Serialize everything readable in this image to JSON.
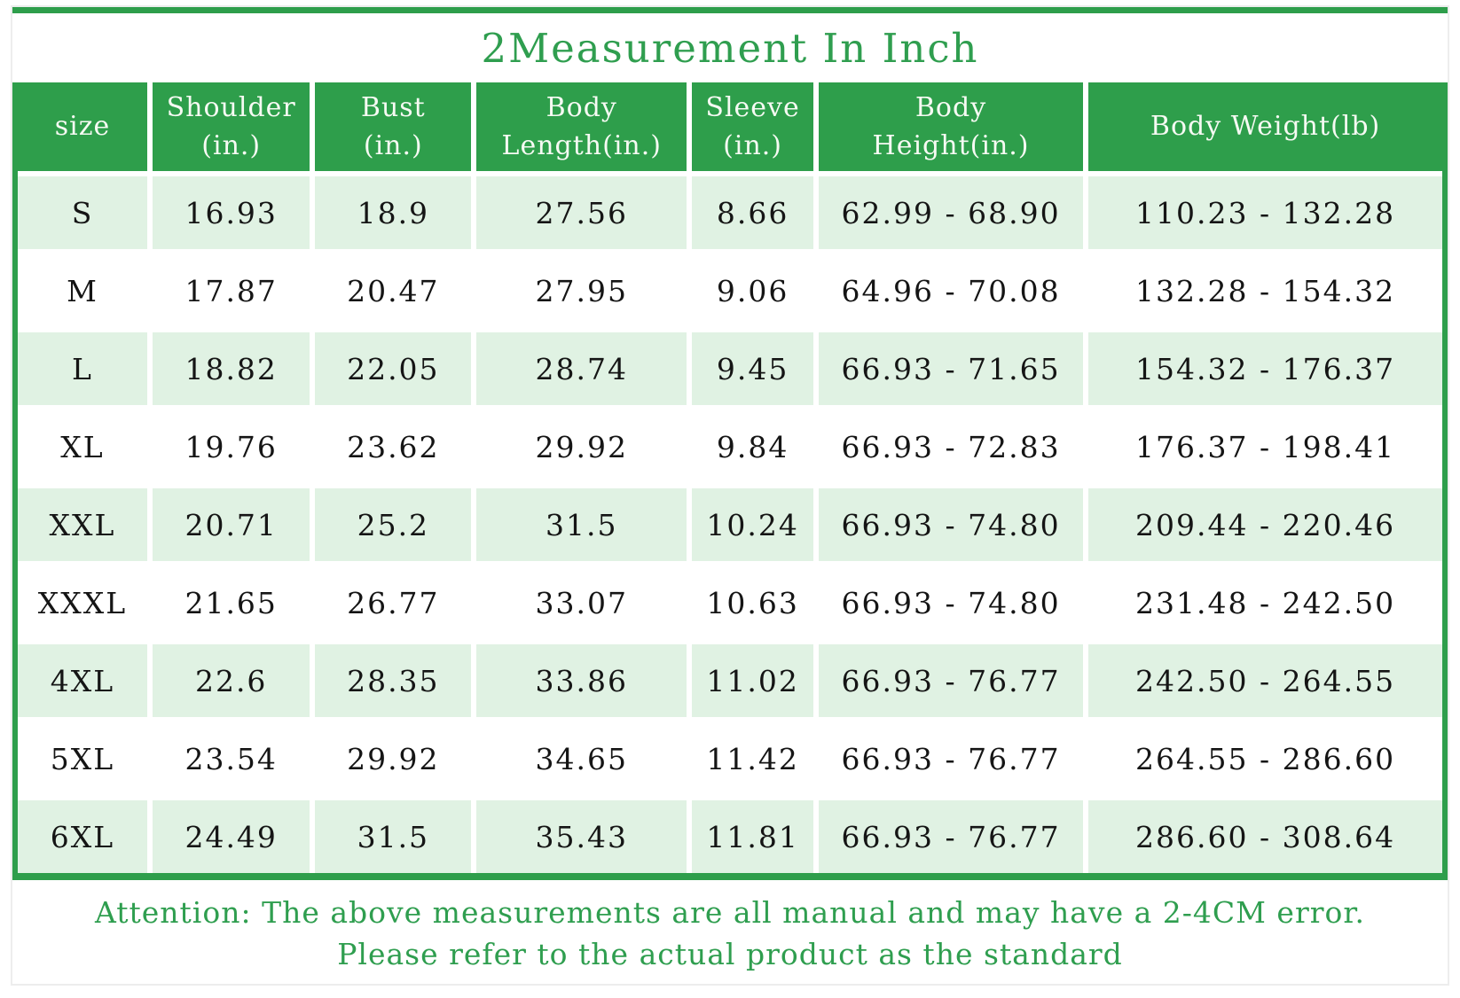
{
  "title": "2Measurement In Inch",
  "colors": {
    "accent_green": "#2e9e4b",
    "row_tint_green": "#e0f2e3",
    "note_text_green": "#2f9e4f",
    "header_text": "#f6faf3",
    "cell_text": "#151515"
  },
  "header_display": [
    "size",
    "Shoulder\n(in.)",
    "Bust\n(in.)",
    "Body\nLength(in.)",
    "Sleeve\n(in.)",
    "Body\nHeight(in.)",
    "Body Weight(lb)"
  ],
  "chart_data": {
    "type": "table",
    "title": "2Measurement In Inch",
    "columns": [
      "size",
      "Shoulder (in.)",
      "Bust (in.)",
      "Body Length(in.)",
      "Sleeve (in.)",
      "Body Height(in.)",
      "Body Weight(lb)"
    ],
    "rows": [
      [
        "S",
        "16.93",
        "18.9",
        "27.56",
        "8.66",
        "62.99 - 68.90",
        "110.23 - 132.28"
      ],
      [
        "M",
        "17.87",
        "20.47",
        "27.95",
        "9.06",
        "64.96 - 70.08",
        "132.28 - 154.32"
      ],
      [
        "L",
        "18.82",
        "22.05",
        "28.74",
        "9.45",
        "66.93 - 71.65",
        "154.32 - 176.37"
      ],
      [
        "XL",
        "19.76",
        "23.62",
        "29.92",
        "9.84",
        "66.93 - 72.83",
        "176.37 - 198.41"
      ],
      [
        "XXL",
        "20.71",
        "25.2",
        "31.5",
        "10.24",
        "66.93 - 74.80",
        "209.44 - 220.46"
      ],
      [
        "XXXL",
        "21.65",
        "26.77",
        "33.07",
        "10.63",
        "66.93 - 74.80",
        "231.48 - 242.50"
      ],
      [
        "4XL",
        "22.6",
        "28.35",
        "33.86",
        "11.02",
        "66.93 - 76.77",
        "242.50 - 264.55"
      ],
      [
        "5XL",
        "23.54",
        "29.92",
        "34.65",
        "11.42",
        "66.93 - 76.77",
        "264.55 - 286.60"
      ],
      [
        "6XL",
        "24.49",
        "31.5",
        "35.43",
        "11.81",
        "66.93 - 76.77",
        "286.60 - 308.64"
      ]
    ],
    "notes": [
      "Attention: The above measurements are all manual and may have a 2-4CM error.",
      "Please refer to the actual product as the standard"
    ]
  },
  "notes": [
    "Attention: The above measurements are all manual and may have a 2-4CM error.",
    "Please refer to the actual product as the standard"
  ]
}
